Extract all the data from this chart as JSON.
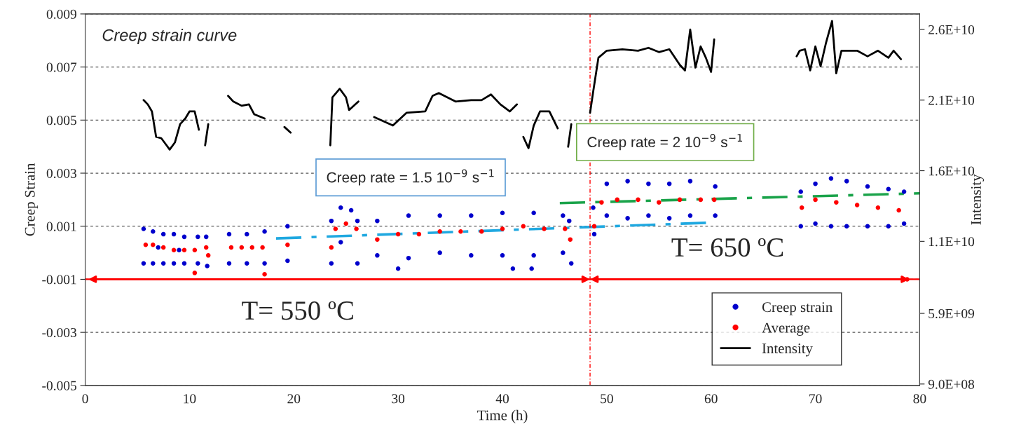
{
  "chart_data": {
    "type": "scatter",
    "title": "Creep strain curve",
    "xlabel": "Time (h)",
    "ylabel": "Creep Strain",
    "y2label": "Intensity",
    "xlim": [
      0,
      80
    ],
    "xticks": [
      0,
      10,
      20,
      30,
      40,
      50,
      60,
      70,
      80
    ],
    "ylim": [
      -0.005,
      0.009
    ],
    "yticks": [
      -0.005,
      -0.003,
      -0.001,
      0.001,
      0.003,
      0.005,
      0.007,
      0.009
    ],
    "y2lim": [
      800000000.0,
      27100000000.0
    ],
    "y2ticks": [
      {
        "value": 900000000.0,
        "label": "9.0E+08"
      },
      {
        "value": 5900000000.0,
        "label": "5.9E+09"
      },
      {
        "value": 11000000000.0,
        "label": "1.1E+10"
      },
      {
        "value": 16000000000.0,
        "label": "1.6E+10"
      },
      {
        "value": 21000000000.0,
        "label": "2.1E+10"
      },
      {
        "value": 26000000000.0,
        "label": "2.6E+10"
      }
    ],
    "grid": "y",
    "legend": "bottom right",
    "series": [
      {
        "name": "Creep strain",
        "marker": "circle",
        "color": "#0000cc",
        "x": [
          5.6,
          5.6,
          6.5,
          6.5,
          7.5,
          7.5,
          8.5,
          8.5,
          9.5,
          9.5,
          10.8,
          10.8,
          7,
          9,
          11.6,
          11.7,
          13.8,
          13.8,
          15.5,
          15.5,
          17.2,
          17.2,
          19.4,
          19.4,
          23.6,
          23.6,
          24.5,
          25.5,
          26.1,
          26.1,
          24.5,
          28,
          28,
          31,
          31,
          34,
          34,
          37,
          37,
          40,
          40,
          43,
          43,
          45.8,
          45.8,
          30,
          41,
          42.8,
          46.4,
          46.6,
          48.7,
          48.8,
          50,
          50,
          52,
          52,
          54,
          54,
          56,
          56,
          58,
          58,
          60.4,
          60.4,
          68.6,
          68.6,
          70,
          70,
          71.5,
          71.5,
          73,
          73,
          75,
          75,
          77,
          77,
          78.5,
          78.5
        ],
        "values": [
          0.0009,
          -0.0004,
          0.0008,
          -0.0004,
          0.0007,
          -0.0004,
          0.0007,
          -0.0004,
          0.0006,
          -0.0004,
          0.0006,
          -0.0004,
          0.0002,
          0.0001,
          0.0006,
          -0.0005,
          0.0007,
          -0.0004,
          0.0007,
          -0.0004,
          0.0008,
          -0.0004,
          0.001,
          -0.0003,
          0.0012,
          -0.0004,
          0.0017,
          0.0016,
          0.0012,
          -0.0004,
          0.0004,
          0.0012,
          -0.0001,
          0.0014,
          -0.0002,
          0.0014,
          0,
          0.0014,
          -0.0001,
          0.0015,
          -0.0001,
          0.0015,
          -0.0001,
          0.0014,
          0,
          -0.0006,
          -0.0006,
          -0.0006,
          0.0012,
          -0.0004,
          0.0017,
          0.0007,
          0.0026,
          0.0014,
          0.0027,
          0.0013,
          0.0026,
          0.0014,
          0.0026,
          0.0013,
          0.0027,
          0.0014,
          0.0025,
          0.0014,
          0.0023,
          0.001,
          0.0026,
          0.0011,
          0.0028,
          0.001,
          0.0027,
          0.001,
          0.0025,
          0.001,
          0.0024,
          0.001,
          0.0023,
          0.0011
        ]
      },
      {
        "name": "Average",
        "marker": "circle",
        "color": "#ff0000",
        "x": [
          5.8,
          6.5,
          7.5,
          8.5,
          9.5,
          10.5,
          10.5,
          11.6,
          11.8,
          14,
          15,
          16,
          17,
          17.2,
          19.4,
          23.6,
          24,
          25,
          26,
          28,
          30,
          32,
          34,
          36,
          38,
          40,
          42,
          44,
          46,
          46.5,
          48.8,
          49.5,
          51,
          53,
          55,
          57,
          59,
          60.3,
          68.7,
          70,
          72,
          74,
          76,
          78,
          78.8
        ],
        "values": [
          0.0003,
          0.0003,
          0.0002,
          0.0001,
          0.0001,
          0.0001,
          -0.00076,
          0.0002,
          -0.0001,
          0.0002,
          0.0002,
          0.0002,
          0.0002,
          -0.00081,
          0.0003,
          0.0002,
          0.0009,
          0.0011,
          0.0009,
          0.0005,
          0.0007,
          0.0007,
          0.0008,
          0.0008,
          0.0008,
          0.0009,
          0.001,
          0.0009,
          0.0009,
          0.0005,
          0.001,
          0.0019,
          0.002,
          0.002,
          0.0019,
          0.002,
          0.002,
          0.002,
          0.0017,
          0.002,
          0.0019,
          0.0018,
          0.0017,
          0.0016,
          -0.001
        ]
      },
      {
        "name": "Intensity",
        "type": "line",
        "axis": "y2",
        "line_style": "solid",
        "color": "#000000",
        "x": [
          5.6,
          6.0,
          6.4,
          6.8,
          7.3,
          7.8,
          8.1,
          8.6,
          9.1,
          9.6,
          10.0,
          10.5,
          10.9,
          11.2,
          11.5,
          11.8,
          12.5,
          13.7,
          14.2,
          15.0,
          15.7,
          16.2,
          17.2,
          18.0,
          19.1,
          19.7,
          21.0,
          23.5,
          23.7,
          24.4,
          25.0,
          25.3,
          26.2,
          27.0,
          27.7,
          29.5,
          30.8,
          32.6,
          33.3,
          33.9,
          35.5,
          37.0,
          38.0,
          38.9,
          39.8,
          40.7,
          41.4,
          41.7,
          42.0,
          42.5,
          43.0,
          43.6,
          44.5,
          45.3,
          45.8,
          46.3,
          46.6,
          47.5,
          48.4,
          48.7,
          49.2,
          50.0,
          51.5,
          53.0,
          54.0,
          55.0,
          56.0,
          57.0,
          57.5,
          58.0,
          58.5,
          59.0,
          59.5,
          60.0,
          60.3,
          64.0,
          68.2,
          68.5,
          69.0,
          69.5,
          70.0,
          70.5,
          71.0,
          71.6,
          72.0,
          72.5,
          74.0,
          75.0,
          76.0,
          77.0,
          77.5,
          78.2
        ],
        "values": [
          21000000000.0,
          20700000000.0,
          20200000000.0,
          18400000000.0,
          18300000000.0,
          17800000000.0,
          17500000000.0,
          18000000000.0,
          19300000000.0,
          19700000000.0,
          20200000000.0,
          20200000000.0,
          18900000000.0,
          null,
          17800000000.0,
          19300000000.0,
          null,
          21300000000.0,
          20900000000.0,
          20600000000.0,
          20700000000.0,
          20000000000.0,
          19700000000.0,
          null,
          19100000000.0,
          18700000000.0,
          null,
          17800000000.0,
          21200000000.0,
          21800000000.0,
          21200000000.0,
          20300000000.0,
          20900000000.0,
          null,
          19800000000.0,
          19200000000.0,
          20100000000.0,
          20200000000.0,
          21300000000.0,
          21500000000.0,
          20900000000.0,
          21000000000.0,
          21000000000.0,
          21400000000.0,
          20700000000.0,
          20200000000.0,
          20700000000.0,
          null,
          18400000000.0,
          17600000000.0,
          19200000000.0,
          20200000000.0,
          20200000000.0,
          19000000000.0,
          null,
          17700000000.0,
          19300000000.0,
          null,
          20100000000.0,
          21600000000.0,
          24000000000.0,
          24500000000.0,
          24600000000.0,
          24500000000.0,
          24700000000.0,
          24400000000.0,
          24600000000.0,
          23500000000.0,
          23100000000.0,
          26000000000.0,
          23300000000.0,
          24800000000.0,
          24000000000.0,
          23000000000.0,
          25300000000.0,
          null,
          24100000000.0,
          24500000000.0,
          24600000000.0,
          23100000000.0,
          24800000000.0,
          23400000000.0,
          25000000000.0,
          26600000000.0,
          22900000000.0,
          24500000000.0,
          24500000000.0,
          24100000000.0,
          24500000000.0,
          24000000000.0,
          24500000000.0,
          23900000000.0
        ]
      },
      {
        "type": "line",
        "line_style": "dashed",
        "color": "#1fa8e0",
        "x": [
          18.3,
          59.6
        ],
        "values": [
          0.00054,
          0.00113
        ]
      },
      {
        "type": "line",
        "line_style": "dashed",
        "color": "#1aa34a",
        "x": [
          45.5,
          80
        ],
        "values": [
          0.00187,
          0.00224
        ]
      }
    ],
    "ref_lines": [
      {
        "axis": "x",
        "value": 48.4,
        "color": "#ff0000",
        "line_style": "dotted"
      },
      {
        "axis": "y",
        "value": -0.001,
        "color": "#ff0000",
        "line_style": "solid"
      }
    ],
    "annotations": [
      "Creep rate = 1.5 10$^{−9}$ s$^{−1}$",
      "Creep rate = 2 10$^{−9}$ s$^{−1}$",
      "T= 550 ºC",
      "T= 650 ºC"
    ]
  }
}
